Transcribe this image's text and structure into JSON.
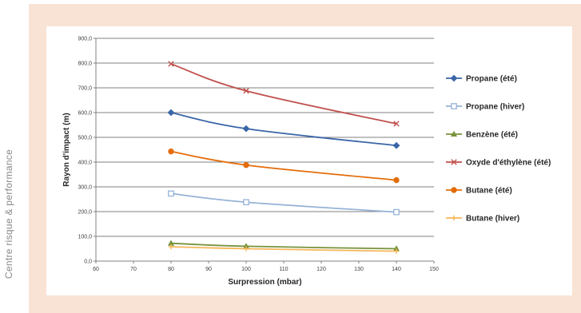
{
  "side_label": "Centre risque & performance",
  "colors": {
    "panel_background": "#f8e3d5",
    "gridline": "#808080"
  },
  "chart_data": {
    "type": "line",
    "xlabel": "Surpression (mbar)",
    "ylabel": "Rayon d'impact (m)",
    "xlim": [
      60,
      150
    ],
    "ylim": [
      0,
      900
    ],
    "x_ticks": [
      60,
      70,
      80,
      90,
      100,
      110,
      120,
      130,
      140,
      150
    ],
    "y_ticks": [
      0,
      100,
      200,
      300,
      400,
      500,
      600,
      700,
      800,
      900
    ],
    "y_tick_labels": [
      "0,0",
      "100,0",
      "200,0",
      "300,0",
      "400,0",
      "500,0",
      "600,0",
      "700,0",
      "800,0",
      "900,0"
    ],
    "grid": "horizontal",
    "legend_position": "right",
    "x": [
      80,
      100,
      140
    ],
    "series": [
      {
        "name": "Propane (été)",
        "values": [
          600,
          535,
          467
        ],
        "color": "#3a66a8",
        "marker": "diamond",
        "filled": true
      },
      {
        "name": "Propane (hiver)",
        "values": [
          273,
          238,
          198
        ],
        "color": "#95b3d7",
        "marker": "square",
        "filled": false
      },
      {
        "name": "Benzène (été)",
        "values": [
          72,
          60,
          50
        ],
        "color": "#77933c",
        "marker": "triangle",
        "filled": true
      },
      {
        "name": "Oxyde d'éthylène (été)",
        "values": [
          797,
          688,
          555
        ],
        "color": "#c0504d",
        "marker": "x",
        "filled": false
      },
      {
        "name": "Butane (été)",
        "values": [
          443,
          388,
          327
        ],
        "color": "#e46c0a",
        "marker": "circle",
        "filled": true
      },
      {
        "name": "Butane (hiver)",
        "values": [
          58,
          50,
          40
        ],
        "color": "#f5b75a",
        "marker": "plus",
        "filled": false
      }
    ]
  }
}
